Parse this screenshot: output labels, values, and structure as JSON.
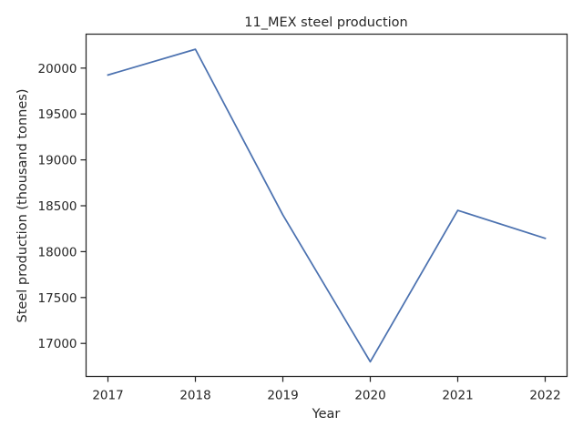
{
  "chart_data": {
    "type": "line",
    "title": "11_MEX steel production",
    "xlabel": "Year",
    "ylabel": "Steel production (thousand tonnes)",
    "x": [
      2017,
      2018,
      2019,
      2020,
      2021,
      2022
    ],
    "series": [
      {
        "values": [
          19925,
          20205,
          18400,
          16800,
          18450,
          18145
        ],
        "color": "#4c72b0"
      }
    ],
    "xticks": [
      "2017",
      "2018",
      "2019",
      "2020",
      "2021",
      "2022"
    ],
    "yticks": [
      "17000",
      "17500",
      "18000",
      "18500",
      "19000",
      "19500",
      "20000"
    ],
    "ylim": [
      16640,
      20370
    ],
    "xlim": [
      2016.75,
      2022.25
    ],
    "grid": false,
    "legend": "none"
  }
}
